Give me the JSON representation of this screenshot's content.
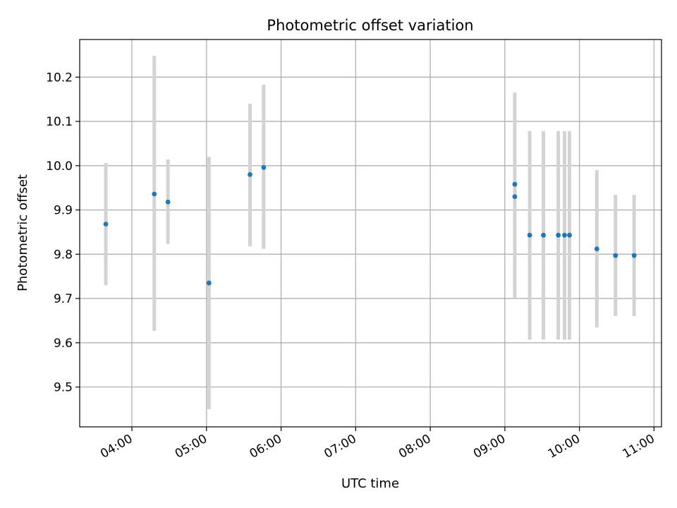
{
  "chart_data": {
    "type": "scatter",
    "title": "Photometric offset variation",
    "xlabel": "UTC time",
    "ylabel": "Photometric offset",
    "x_tick_labels": [
      "04:00",
      "05:00",
      "06:00",
      "07:00",
      "08:00",
      "09:00",
      "10:00",
      "11:00"
    ],
    "y_tick_labels": [
      "9.5",
      "9.6",
      "9.7",
      "9.8",
      "9.9",
      "10.0",
      "10.1",
      "10.2"
    ],
    "xlim": [
      "03:18",
      "11:06"
    ],
    "ylim": [
      9.41,
      10.285
    ],
    "grid": true,
    "legend": "none",
    "colors": {
      "point": "#1f77b4",
      "errorbar": "#d3d3d3",
      "grid": "#b0b0b0"
    },
    "points": [
      {
        "x": "03:39",
        "y": 9.868,
        "ylow": 9.73,
        "yhigh": 10.006
      },
      {
        "x": "04:18",
        "y": 9.936,
        "ylow": 9.627,
        "yhigh": 10.248
      },
      {
        "x": "04:29",
        "y": 9.918,
        "ylow": 9.823,
        "yhigh": 10.014
      },
      {
        "x": "05:02",
        "y": 9.735,
        "ylow": 9.45,
        "yhigh": 10.02
      },
      {
        "x": "05:35",
        "y": 9.98,
        "ylow": 9.818,
        "yhigh": 10.14
      },
      {
        "x": "05:46",
        "y": 9.996,
        "ylow": 9.812,
        "yhigh": 10.183
      },
      {
        "x": "09:08",
        "y": 9.958,
        "ylow": 9.75,
        "yhigh": 10.165
      },
      {
        "x": "09:08",
        "y": 9.93,
        "ylow": 9.7,
        "yhigh": 10.16
      },
      {
        "x": "09:20",
        "y": 9.843,
        "ylow": 9.607,
        "yhigh": 10.078
      },
      {
        "x": "09:31",
        "y": 9.843,
        "ylow": 9.607,
        "yhigh": 10.078
      },
      {
        "x": "09:43",
        "y": 9.843,
        "ylow": 9.607,
        "yhigh": 10.078
      },
      {
        "x": "09:48",
        "y": 9.843,
        "ylow": 9.607,
        "yhigh": 10.078
      },
      {
        "x": "09:52",
        "y": 9.843,
        "ylow": 9.607,
        "yhigh": 10.078
      },
      {
        "x": "10:14",
        "y": 9.812,
        "ylow": 9.635,
        "yhigh": 9.99
      },
      {
        "x": "10:29",
        "y": 9.797,
        "ylow": 9.66,
        "yhigh": 9.934
      },
      {
        "x": "10:44",
        "y": 9.797,
        "ylow": 9.66,
        "yhigh": 9.934
      }
    ]
  }
}
